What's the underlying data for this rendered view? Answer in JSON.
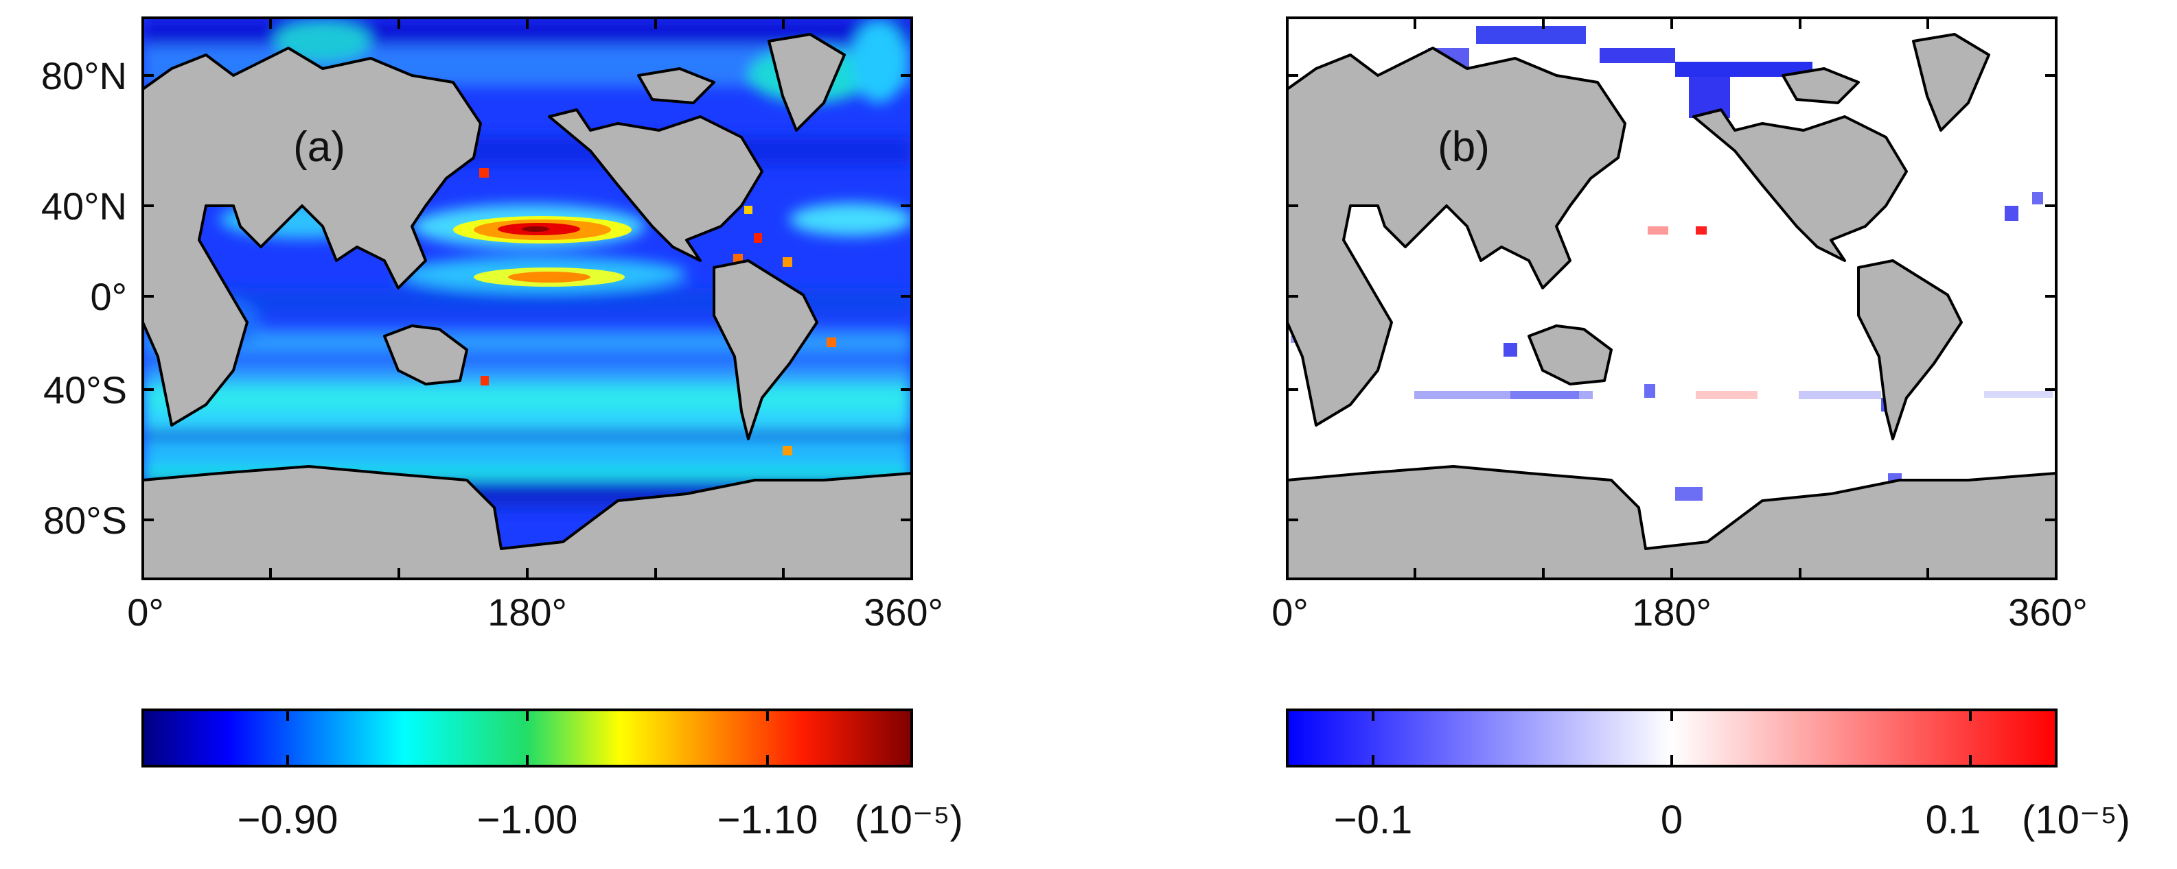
{
  "figure": {
    "panels": [
      {
        "id": "a",
        "label": "(a)",
        "y_ticks": [
          "80°N",
          "40°N",
          "0°",
          "40°S",
          "80°S"
        ],
        "x_ticks": [
          "0°",
          "180°",
          "360°"
        ],
        "field": "jet-colored gridded field over the oceans; strongest values in two bands of the North Pacific near 180°",
        "colorbar": {
          "colormap": "jet",
          "ticks": [
            "−0.90",
            "−1.00",
            "−1.10"
          ],
          "unit": "(10⁻⁵)"
        }
      },
      {
        "id": "b",
        "label": "(b)",
        "y_ticks": [],
        "x_ticks": [
          "0°",
          "180°",
          "360°"
        ],
        "field": "mostly white oceans; blue cells along the Arctic coasts and scattered elsewhere; a few red cells in the subtropical North Pacific",
        "colorbar": {
          "colormap": "blue-white-red",
          "ticks": [
            "−0.1",
            "0",
            "0.1"
          ],
          "unit": "(10⁻⁵)"
        }
      }
    ],
    "colors": {
      "land": "#b4b4b4",
      "coastline": "#000000",
      "frame": "#000000",
      "ocean_b_background": "#ffffff"
    }
  }
}
